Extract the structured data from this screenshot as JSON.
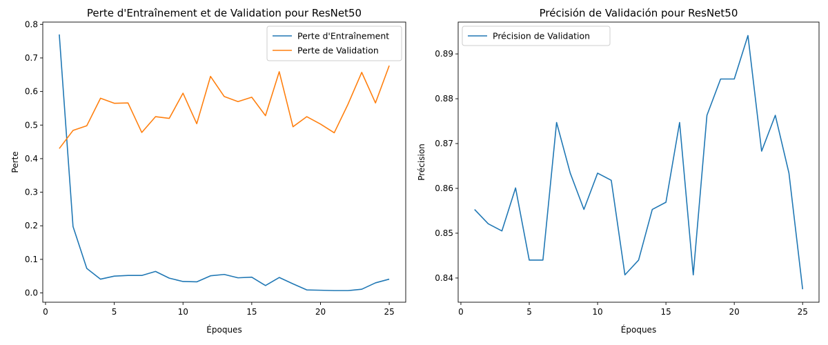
{
  "chart_data": [
    {
      "type": "line",
      "title": "Perte d'Entraînement et de Validation pour ResNet50",
      "xlabel": "Époques",
      "ylabel": "Perte",
      "xlim": [
        -0.2,
        26.2
      ],
      "ylim": [
        -0.0277,
        0.8068
      ],
      "xticks": [
        0,
        5,
        10,
        15,
        20,
        25
      ],
      "yticks": [
        0.0,
        0.1,
        0.2,
        0.3,
        0.4,
        0.5,
        0.6,
        0.7,
        0.8
      ],
      "ytick_labels": [
        "0.0",
        "0.1",
        "0.2",
        "0.3",
        "0.4",
        "0.5",
        "0.6",
        "0.7",
        "0.8"
      ],
      "legend_position": "top-right",
      "grid": false,
      "x": [
        1,
        2,
        3,
        4,
        5,
        6,
        7,
        8,
        9,
        10,
        11,
        12,
        13,
        14,
        15,
        16,
        17,
        18,
        19,
        20,
        21,
        22,
        23,
        24,
        25
      ],
      "series": [
        {
          "name": "Perte d'Entraînement",
          "color": "#1f77b4",
          "values": [
            0.77,
            0.198,
            0.073,
            0.041,
            0.05,
            0.052,
            0.052,
            0.064,
            0.044,
            0.034,
            0.033,
            0.051,
            0.055,
            0.045,
            0.047,
            0.022,
            0.046,
            0.027,
            0.009,
            0.008,
            0.007,
            0.007,
            0.011,
            0.03,
            0.041
          ]
        },
        {
          "name": "Perte de Validation",
          "color": "#ff7f0e",
          "values": [
            0.43,
            0.484,
            0.498,
            0.58,
            0.565,
            0.566,
            0.478,
            0.525,
            0.52,
            0.595,
            0.504,
            0.645,
            0.585,
            0.57,
            0.583,
            0.528,
            0.659,
            0.495,
            0.525,
            0.503,
            0.477,
            0.562,
            0.657,
            0.566,
            0.677
          ]
        }
      ]
    },
    {
      "type": "line",
      "title": "Précisión de Validación pour ResNet50",
      "xlabel": "Époques",
      "ylabel": "Précision",
      "xlim": [
        -0.2,
        26.2
      ],
      "ylim": [
        0.8346,
        0.8971
      ],
      "xticks": [
        0,
        5,
        10,
        15,
        20,
        25
      ],
      "yticks": [
        0.84,
        0.85,
        0.86,
        0.87,
        0.88,
        0.89
      ],
      "ytick_labels": [
        "0.84",
        "0.85",
        "0.86",
        "0.87",
        "0.88",
        "0.89"
      ],
      "legend_position": "top-left",
      "grid": false,
      "x": [
        1,
        2,
        3,
        4,
        5,
        6,
        7,
        8,
        9,
        10,
        11,
        12,
        13,
        14,
        15,
        16,
        17,
        18,
        19,
        20,
        21,
        22,
        23,
        24,
        25
      ],
      "series": [
        {
          "name": "Précision de Validation",
          "color": "#1f77b4",
          "values": [
            0.8553,
            0.8521,
            0.8505,
            0.8601,
            0.844,
            0.844,
            0.8747,
            0.8634,
            0.8553,
            0.8634,
            0.8618,
            0.8407,
            0.844,
            0.8553,
            0.8569,
            0.8747,
            0.8407,
            0.8763,
            0.8844,
            0.8844,
            0.8941,
            0.8683,
            0.8763,
            0.8634,
            0.8375
          ]
        }
      ]
    }
  ]
}
